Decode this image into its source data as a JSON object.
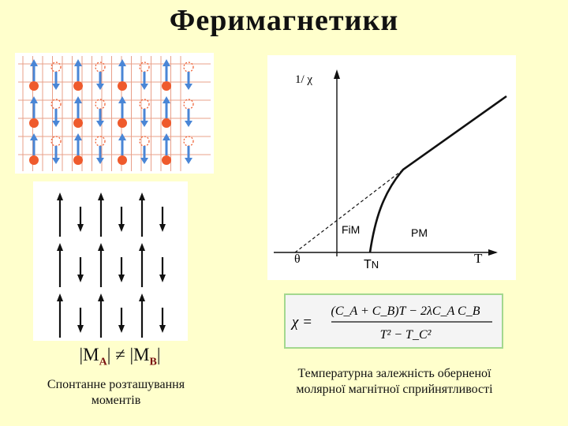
{
  "title": "Феримагнетики",
  "moment_relation": {
    "ma": "|M",
    "ma_sub": "A",
    "neq": "|  ≠  |M",
    "mb_sub": "B",
    "end": "|"
  },
  "left_caption": {
    "line1": "Спонтанне розташування",
    "line2": "моментів"
  },
  "right_caption": {
    "line1": "Температурна залежність оберненої",
    "line2": "молярної магнітної сприйнятливості"
  },
  "graph": {
    "y_label": "1/ χ",
    "fim_label": "FiM",
    "pm_label": "PM",
    "theta_label": "θ",
    "tn_label": "T",
    "tn_sub": "N",
    "t_label": "T"
  },
  "formula": {
    "lhs": "χ =",
    "numerator": "(C_A + C_B)T − 2λC_A C_B",
    "denominator": "T² − T_C²"
  },
  "colors": {
    "background": "#ffffcc",
    "spin_up": "#4a86d6",
    "spin_down_atom": "#ef5a2c",
    "formula_border": "#a3d88e"
  },
  "lattice": {
    "rows": 3,
    "columns": 8,
    "pattern": "alternating large up-spin (blue arrow) and small down-spin atoms (solid and hollow red circles)"
  },
  "moment_arrays": {
    "rows": 3,
    "columns": 6,
    "pattern": "long up arrows alternating with short down arrows"
  }
}
